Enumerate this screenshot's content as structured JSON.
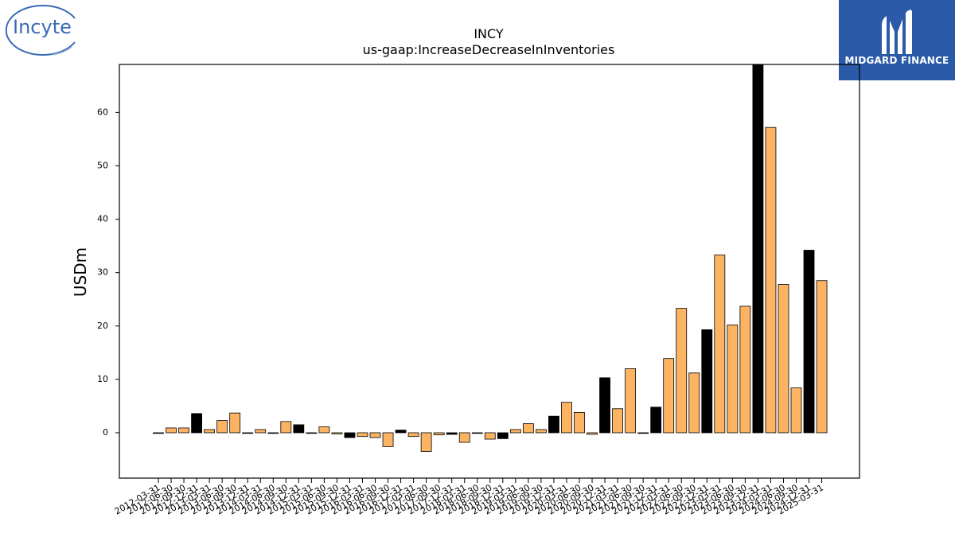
{
  "logos": {
    "left_text": "Incyte",
    "right_text": "MIDGARD FINANCE"
  },
  "chart_data": {
    "type": "bar",
    "title": "INCY",
    "subtitle": "us-gaap:IncreaseDecreaseInInventories",
    "ylabel": "USDm",
    "xlabel": "",
    "ylim": [
      -8.5,
      69
    ],
    "yticks": [
      0,
      10,
      20,
      30,
      40,
      50,
      60
    ],
    "grid": false,
    "colors": {
      "quarter": "#fdb462",
      "annual": "#000000"
    },
    "categories": [
      "2012-03-31",
      "2012-06-30",
      "2012-09-30",
      "2012-12-31",
      "2013-03-31",
      "2013-06-30",
      "2013-09-30",
      "2013-12-31",
      "2014-03-31",
      "2014-06-30",
      "2014-09-30",
      "2014-12-31",
      "2015-03-31",
      "2015-06-30",
      "2015-09-30",
      "2015-12-31",
      "2016-03-31",
      "2016-06-30",
      "2016-09-30",
      "2016-12-31",
      "2017-03-31",
      "2017-06-30",
      "2017-09-30",
      "2017-12-31",
      "2018-03-31",
      "2018-06-30",
      "2018-09-30",
      "2018-12-31",
      "2019-03-31",
      "2019-06-30",
      "2019-09-30",
      "2019-12-31",
      "2020-03-31",
      "2020-06-30",
      "2020-09-30",
      "2020-12-31",
      "2021-03-31",
      "2021-06-30",
      "2021-09-30",
      "2021-12-31",
      "2022-03-31",
      "2022-06-30",
      "2022-09-30",
      "2022-12-31",
      "2023-03-31",
      "2023-06-30",
      "2023-09-30",
      "2023-12-31",
      "2024-03-31",
      "2024-06-30",
      "2024-09-30",
      "2024-12-31",
      "2025-03-31"
    ],
    "values": [
      -0.1,
      0.9,
      0.9,
      3.6,
      0.6,
      2.3,
      3.7,
      -0.1,
      0.6,
      -0.1,
      2.1,
      1.5,
      -0.1,
      1.1,
      -0.2,
      -0.9,
      -0.7,
      -0.9,
      -2.6,
      0.5,
      -0.7,
      -3.5,
      -0.4,
      -0.3,
      -1.8,
      -0.1,
      -1.2,
      -1.1,
      0.6,
      1.7,
      0.6,
      3.1,
      5.7,
      3.8,
      -0.3,
      10.3,
      4.5,
      12.0,
      -0.1,
      4.8,
      13.9,
      23.3,
      11.2,
      19.3,
      33.3,
      20.2,
      23.7,
      69.0,
      57.2,
      27.8,
      8.4,
      34.2,
      28.5
    ],
    "annual": [
      false,
      false,
      false,
      true,
      false,
      false,
      false,
      true,
      false,
      false,
      false,
      true,
      false,
      false,
      false,
      true,
      false,
      false,
      false,
      true,
      false,
      false,
      false,
      true,
      false,
      false,
      false,
      true,
      false,
      false,
      false,
      true,
      false,
      false,
      false,
      true,
      false,
      false,
      false,
      true,
      false,
      false,
      false,
      true,
      false,
      false,
      false,
      true,
      false,
      false,
      false,
      true,
      false
    ]
  }
}
